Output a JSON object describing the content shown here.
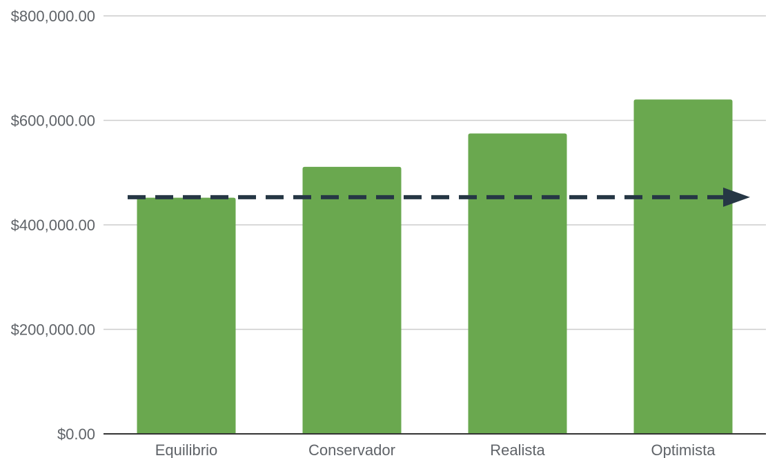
{
  "chart_data": {
    "type": "bar",
    "title": "",
    "xlabel": "",
    "ylabel": "",
    "categories": [
      "Equilibrio",
      "Conservador",
      "Realista",
      "Optimista"
    ],
    "values": [
      452000,
      511000,
      575000,
      640000
    ],
    "ylim": [
      0,
      800000
    ],
    "yticks": [
      0,
      200000,
      400000,
      600000,
      800000
    ],
    "ytick_labels": [
      "$0.00",
      "$200,000.00",
      "$400,000.00",
      "$600,000.00",
      "$800,000.00"
    ],
    "grid": true,
    "legend": "none",
    "reference_line": {
      "value": 453000,
      "style": "dashed arrow"
    },
    "colors": {
      "bar": "#6aa84f",
      "grid": "#cccccc",
      "axis": "#333333",
      "reference_line": "#263745",
      "text": "#5f6368"
    }
  }
}
